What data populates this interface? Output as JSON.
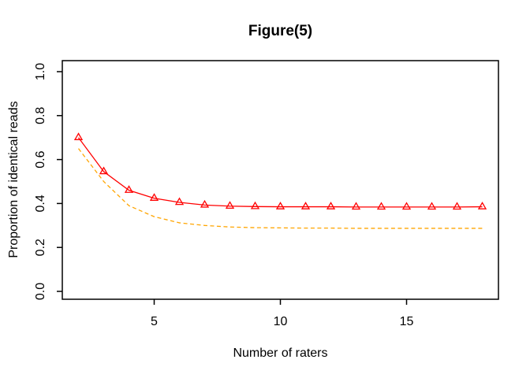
{
  "figure": {
    "title": "Figure(5)",
    "xlabel": "Number of raters",
    "ylabel": "Proportion of identical reads"
  },
  "colors": {
    "background": "#ffffff",
    "axis": "#000000",
    "series_solid": "#ff0000",
    "series_dashed": "#ffa500"
  },
  "chart_data": {
    "type": "line",
    "title": "Figure(5)",
    "xlabel": "Number of raters",
    "ylabel": "Proportion of identical reads",
    "xlim": [
      2,
      18
    ],
    "ylim": [
      0.0,
      1.0
    ],
    "grid": false,
    "legend": "none",
    "xticks": [
      {
        "v": 5,
        "label": "5"
      },
      {
        "v": 10,
        "label": "10"
      },
      {
        "v": 15,
        "label": "15"
      }
    ],
    "yticks": [
      {
        "v": 0.0,
        "label": "0.0"
      },
      {
        "v": 0.2,
        "label": "0.2"
      },
      {
        "v": 0.4,
        "label": "0.4"
      },
      {
        "v": 0.6,
        "label": "0.6"
      },
      {
        "v": 0.8,
        "label": "0.8"
      },
      {
        "v": 1.0,
        "label": "1.0"
      }
    ],
    "x": [
      2,
      3,
      4,
      5,
      6,
      7,
      8,
      9,
      10,
      11,
      12,
      13,
      14,
      15,
      16,
      17,
      18
    ],
    "series": [
      {
        "name": "red-solid-triangles",
        "color": "#ff0000",
        "line_style": "solid",
        "marker": "triangle-open",
        "values": [
          0.7,
          0.545,
          0.46,
          0.424,
          0.405,
          0.393,
          0.388,
          0.386,
          0.385,
          0.385,
          0.385,
          0.384,
          0.384,
          0.384,
          0.384,
          0.384,
          0.385
        ]
      },
      {
        "name": "orange-dashed",
        "color": "#ffa500",
        "line_style": "dashed",
        "marker": "none",
        "values": [
          0.65,
          0.5,
          0.39,
          0.34,
          0.312,
          0.3,
          0.293,
          0.29,
          0.289,
          0.288,
          0.288,
          0.287,
          0.287,
          0.287,
          0.287,
          0.287,
          0.287
        ]
      }
    ]
  }
}
